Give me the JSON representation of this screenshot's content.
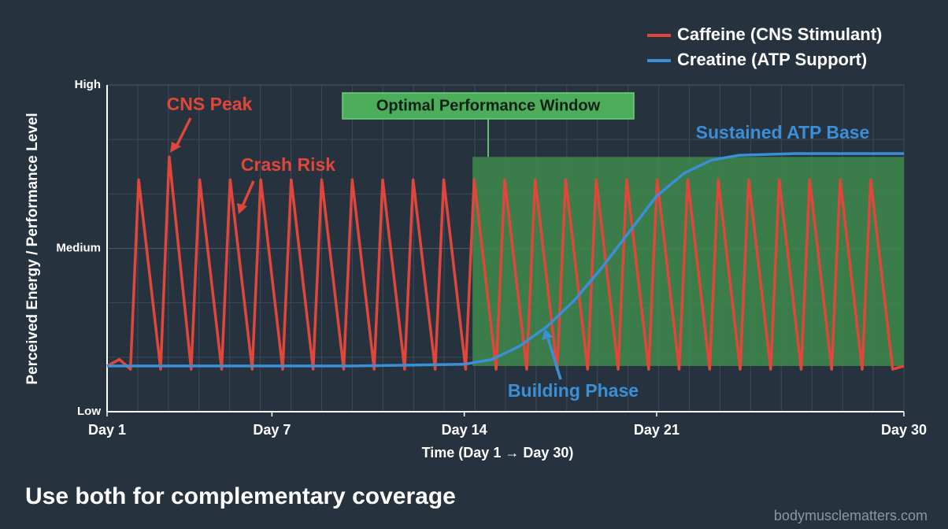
{
  "chart_data": {
    "type": "line",
    "xlabel": "Time (Day 1 → Day 30)",
    "ylabel": "Perceived Energy / Performance Level",
    "footer": "Use both for complementary coverage",
    "watermark": "bodymusclematters.com",
    "xlim": [
      1,
      30
    ],
    "xticks": [
      {
        "value": 1,
        "label": "Day 1"
      },
      {
        "value": 7,
        "label": "Day 7"
      },
      {
        "value": 14,
        "label": "Day 14"
      },
      {
        "value": 21,
        "label": "Day 21"
      },
      {
        "value": 30,
        "label": "Day 30"
      }
    ],
    "ylim": [
      0,
      100
    ],
    "yticks": [
      {
        "value": 0,
        "label": "Low"
      },
      {
        "value": 50,
        "label": "Medium"
      },
      {
        "value": 100,
        "label": "High"
      }
    ],
    "grid": true,
    "legend": "top-right",
    "window": {
      "label": "Optimal Performance Window",
      "x": [
        14.3,
        30
      ],
      "y": [
        14,
        78
      ],
      "color": "#3e8a4c"
    },
    "annotations": [
      "CNS Peak",
      "Crash Risk",
      "Sustained ATP Base",
      "Building Phase"
    ],
    "series": [
      {
        "name": "Caffeine (CNS Stimulant)",
        "color": "#e0473a",
        "x": [
          1,
          1.45,
          1.85,
          2.15,
          2.95,
          3.26,
          4.06,
          4.37,
          5.17,
          5.48,
          6.28,
          6.59,
          7.39,
          7.7,
          8.5,
          8.81,
          9.61,
          9.92,
          10.72,
          11.03,
          11.83,
          12.14,
          12.94,
          13.25,
          14.05,
          14.36,
          15.16,
          15.47,
          16.27,
          16.58,
          17.38,
          17.69,
          18.49,
          18.8,
          19.6,
          19.91,
          20.71,
          21.02,
          21.82,
          22.13,
          22.93,
          23.24,
          24.04,
          24.35,
          25.15,
          25.46,
          26.26,
          26.57,
          27.37,
          27.68,
          28.48,
          28.79,
          29.59,
          30
        ],
        "values": [
          14,
          16,
          13,
          71,
          13,
          78,
          13,
          71,
          13,
          71,
          13,
          71,
          13,
          71,
          13,
          71,
          13,
          71,
          13,
          71,
          13,
          71,
          13,
          71,
          13,
          71,
          13,
          71,
          13,
          71,
          13,
          71,
          13,
          71,
          13,
          71,
          13,
          71,
          13,
          71,
          13,
          71,
          13,
          71,
          13,
          71,
          13,
          71,
          13,
          71,
          13,
          71,
          13,
          14
        ]
      },
      {
        "name": "Creatine (ATP Support)",
        "color": "#3b8fd6",
        "x": [
          1,
          10,
          14,
          15,
          16,
          17,
          18,
          19,
          20,
          21,
          22,
          23,
          24,
          26,
          30
        ],
        "values": [
          14,
          14,
          14.5,
          16,
          20,
          26,
          34,
          44,
          55,
          66,
          73,
          77,
          78.5,
          79,
          79
        ]
      }
    ]
  }
}
